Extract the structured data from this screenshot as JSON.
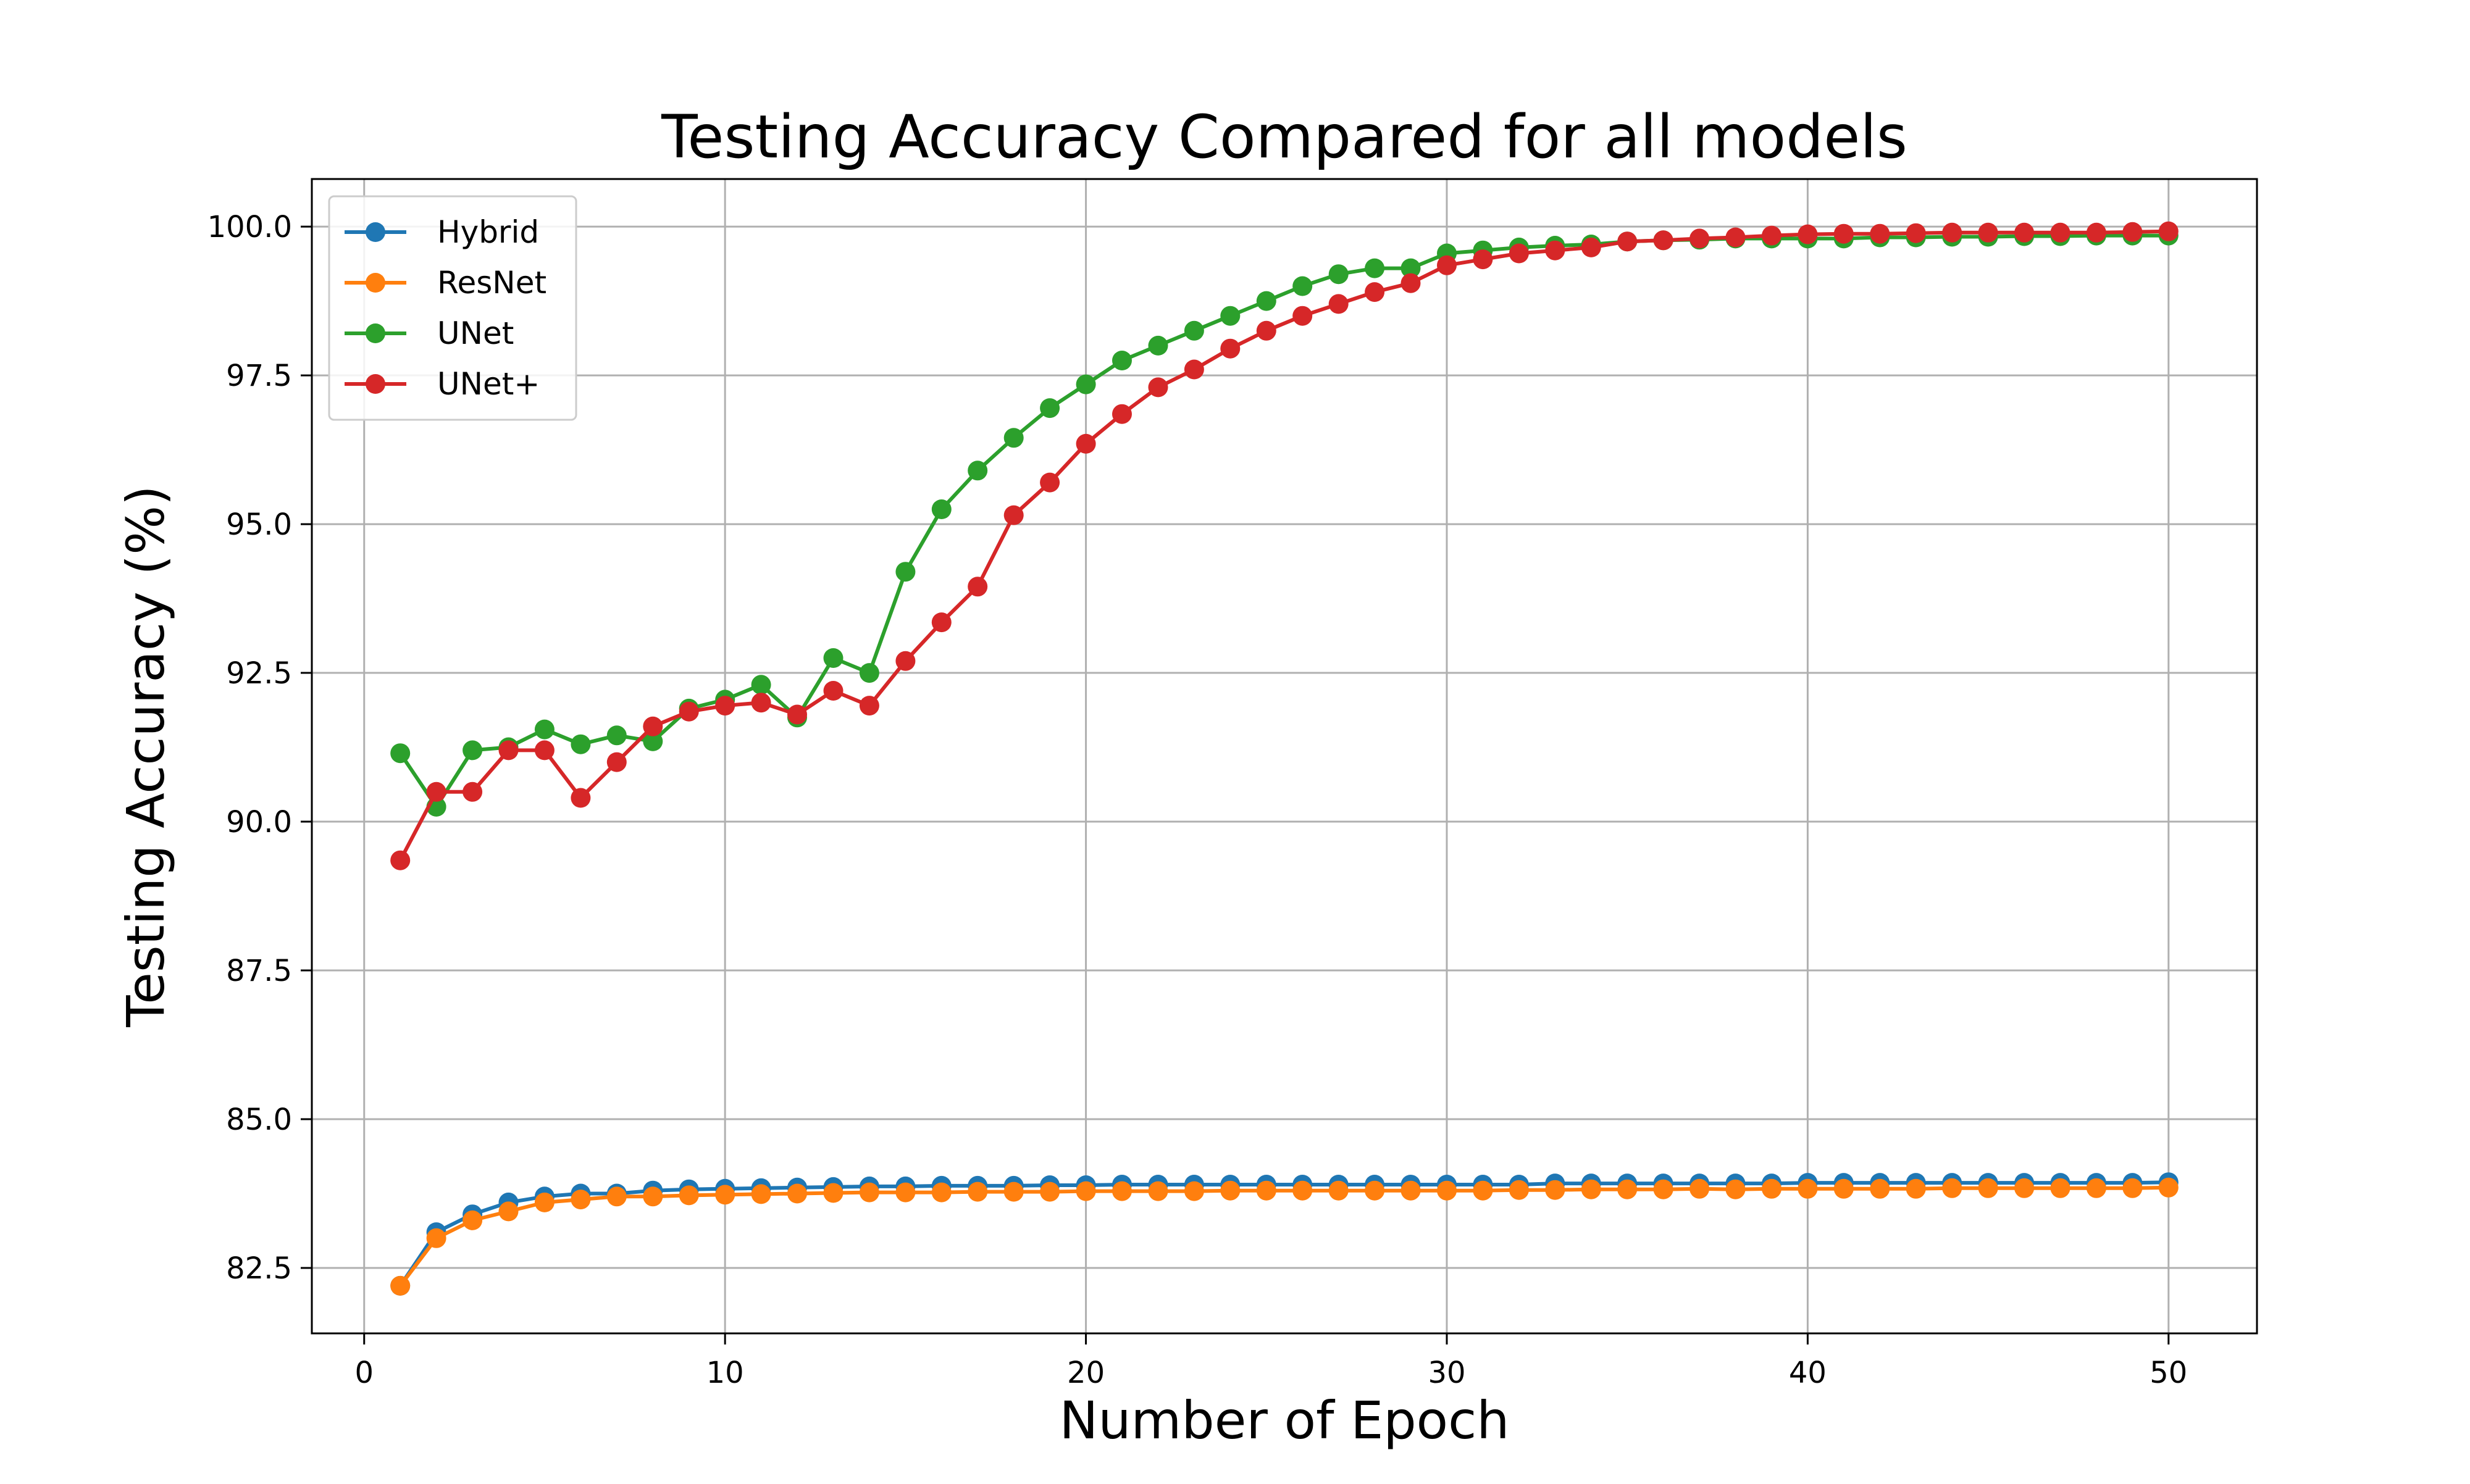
{
  "chart_data": {
    "type": "line",
    "title": "Testing Accuracy Compared for all models",
    "xlabel": "Number of Epoch",
    "ylabel": "Testing Accuracy (%)",
    "xlim": [
      -1.45,
      52.45
    ],
    "ylim": [
      81.4,
      100.8
    ],
    "grid": true,
    "legend_position": "top-left",
    "x_ticks": [
      0,
      10,
      20,
      30,
      40,
      50
    ],
    "x_tick_labels": [
      "0",
      "10",
      "20",
      "30",
      "40",
      "50"
    ],
    "y_ticks": [
      82.5,
      85.0,
      87.5,
      90.0,
      92.5,
      95.0,
      97.5,
      100.0
    ],
    "y_tick_labels": [
      "82.5",
      "85.0",
      "87.5",
      "90.0",
      "92.5",
      "95.0",
      "97.5",
      "100.0"
    ],
    "x": [
      1,
      2,
      3,
      4,
      5,
      6,
      7,
      8,
      9,
      10,
      11,
      12,
      13,
      14,
      15,
      16,
      17,
      18,
      19,
      20,
      21,
      22,
      23,
      24,
      25,
      26,
      27,
      28,
      29,
      30,
      31,
      32,
      33,
      34,
      35,
      36,
      37,
      38,
      39,
      40,
      41,
      42,
      43,
      44,
      45,
      46,
      47,
      48,
      49,
      50
    ],
    "series": [
      {
        "name": "Hybrid",
        "color": "#1f77b4",
        "values": [
          82.2,
          83.1,
          83.4,
          83.6,
          83.7,
          83.75,
          83.75,
          83.8,
          83.82,
          83.83,
          83.84,
          83.85,
          83.86,
          83.87,
          83.87,
          83.88,
          83.88,
          83.88,
          83.89,
          83.89,
          83.9,
          83.9,
          83.9,
          83.9,
          83.9,
          83.9,
          83.9,
          83.9,
          83.9,
          83.9,
          83.9,
          83.9,
          83.92,
          83.92,
          83.92,
          83.92,
          83.92,
          83.92,
          83.92,
          83.93,
          83.93,
          83.93,
          83.93,
          83.93,
          83.93,
          83.93,
          83.93,
          83.93,
          83.93,
          83.94
        ]
      },
      {
        "name": "ResNet",
        "color": "#ff7f0e",
        "values": [
          82.2,
          83.0,
          83.3,
          83.45,
          83.6,
          83.65,
          83.7,
          83.7,
          83.72,
          83.73,
          83.74,
          83.75,
          83.76,
          83.77,
          83.77,
          83.77,
          83.78,
          83.78,
          83.78,
          83.79,
          83.79,
          83.79,
          83.79,
          83.8,
          83.8,
          83.8,
          83.8,
          83.8,
          83.8,
          83.8,
          83.8,
          83.81,
          83.81,
          83.82,
          83.82,
          83.82,
          83.83,
          83.82,
          83.83,
          83.83,
          83.83,
          83.83,
          83.83,
          83.84,
          83.84,
          83.84,
          83.84,
          83.84,
          83.84,
          83.85
        ]
      },
      {
        "name": "UNet",
        "color": "#2ca02c",
        "values": [
          91.15,
          90.25,
          91.2,
          91.25,
          91.55,
          91.3,
          91.45,
          91.35,
          91.9,
          92.05,
          92.3,
          91.75,
          92.75,
          92.5,
          94.2,
          95.25,
          95.9,
          96.45,
          96.95,
          97.35,
          97.75,
          98.0,
          98.25,
          98.5,
          98.75,
          99.0,
          99.2,
          99.3,
          99.3,
          99.55,
          99.6,
          99.65,
          99.68,
          99.7,
          99.75,
          99.77,
          99.78,
          99.8,
          99.8,
          99.8,
          99.8,
          99.82,
          99.82,
          99.83,
          99.83,
          99.84,
          99.84,
          99.85,
          99.85,
          99.85
        ]
      },
      {
        "name": "UNet+",
        "color": "#d62728",
        "values": [
          89.35,
          90.5,
          90.5,
          91.2,
          91.2,
          90.4,
          91.0,
          91.6,
          91.85,
          91.95,
          92.0,
          91.8,
          92.2,
          91.95,
          92.7,
          93.35,
          93.95,
          95.15,
          95.7,
          96.35,
          96.85,
          97.3,
          97.6,
          97.95,
          98.25,
          98.5,
          98.7,
          98.9,
          99.05,
          99.35,
          99.45,
          99.55,
          99.6,
          99.65,
          99.75,
          99.77,
          99.8,
          99.82,
          99.85,
          99.87,
          99.88,
          99.88,
          99.89,
          99.9,
          99.9,
          99.9,
          99.9,
          99.9,
          99.91,
          99.92
        ]
      }
    ]
  }
}
